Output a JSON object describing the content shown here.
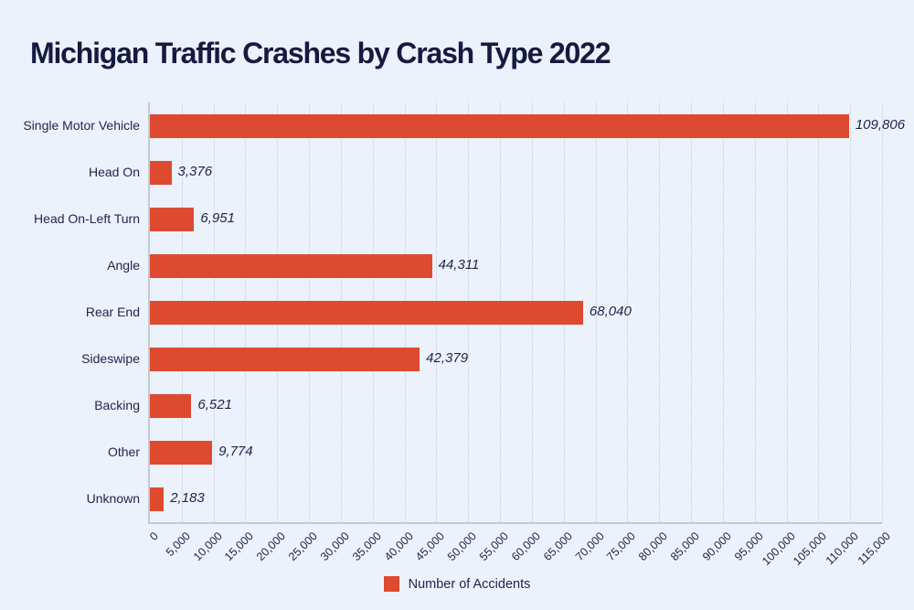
{
  "title": "Michigan Traffic Crashes by Crash Type 2022",
  "legend": {
    "label": "Number of Accidents"
  },
  "colors": {
    "background": "#ECF2FB",
    "bar": "#DD4A2F",
    "title_text": "#151A3F",
    "label_text": "#20264A",
    "gridline": "#C7CDD9",
    "axis_line": "#C3C9D5"
  },
  "chart_data": {
    "type": "bar",
    "orientation": "horizontal",
    "title": "Michigan Traffic Crashes by Crash Type 2022",
    "xlabel": "",
    "ylabel": "",
    "categories": [
      "Single Motor Vehicle",
      "Head On",
      "Head On-Left Turn",
      "Angle",
      "Rear End",
      "Sideswipe",
      "Backing",
      "Other",
      "Unknown"
    ],
    "series": [
      {
        "name": "Number of Accidents",
        "values": [
          109806,
          3376,
          6951,
          44311,
          68040,
          42379,
          6521,
          9774,
          2183
        ],
        "value_labels": [
          "109,806",
          "3,376",
          "6,951",
          "44,311",
          "68,040",
          "42,379",
          "6,521",
          "9,774",
          "2,183"
        ]
      }
    ],
    "xlim": [
      0,
      115000
    ],
    "x_tick_step": 5000,
    "x_tick_labels": [
      "0",
      "5,000",
      "10,000",
      "15,000",
      "20,000",
      "25,000",
      "30,000",
      "35,000",
      "40,000",
      "45,000",
      "50,000",
      "55,000",
      "60,000",
      "65,000",
      "70,000",
      "75,000",
      "80,000",
      "85,000",
      "90,000",
      "95,000",
      "100,000",
      "105,000",
      "110,000",
      "115,000"
    ],
    "grid": "vertical-dotted",
    "legend_position": "bottom-center"
  }
}
